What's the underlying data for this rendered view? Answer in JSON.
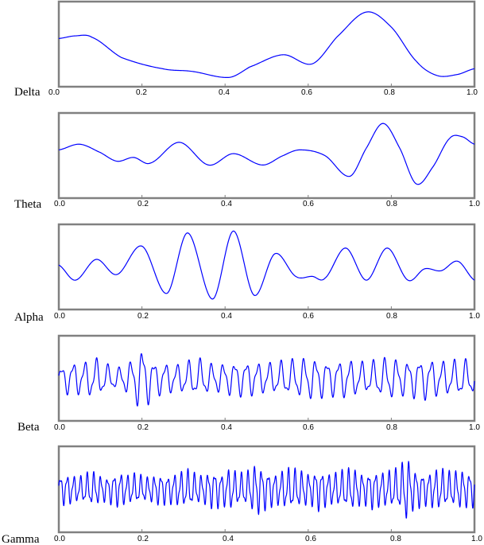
{
  "chart_data": {
    "type": "line",
    "x_ticks": [
      "0.0",
      "0.2",
      "0.4",
      "0.6",
      "0.8",
      "1.0"
    ],
    "x_tick_values": [
      0.0,
      0.2,
      0.4,
      0.6,
      0.8,
      1.0
    ],
    "xlim": [
      0.0,
      1.0
    ],
    "line_color": "#0000ff",
    "frame_color": "#808080",
    "grid": false,
    "panels": [
      {
        "label": "Delta",
        "ylim": [
          -1,
          1
        ],
        "keypoints": [
          [
            0.0,
            0.15
          ],
          [
            0.04,
            0.22
          ],
          [
            0.08,
            0.18
          ],
          [
            0.15,
            -0.35
          ],
          [
            0.25,
            -0.65
          ],
          [
            0.32,
            -0.72
          ],
          [
            0.41,
            -0.88
          ],
          [
            0.46,
            -0.6
          ],
          [
            0.54,
            -0.28
          ],
          [
            0.61,
            -0.52
          ],
          [
            0.67,
            0.2
          ],
          [
            0.74,
            0.85
          ],
          [
            0.8,
            0.45
          ],
          [
            0.86,
            -0.45
          ],
          [
            0.91,
            -0.83
          ],
          [
            0.96,
            -0.8
          ],
          [
            1.0,
            -0.65
          ]
        ]
      },
      {
        "label": "Theta",
        "ylim": [
          -1,
          1
        ],
        "keypoints": [
          [
            0.0,
            0.15
          ],
          [
            0.05,
            0.3
          ],
          [
            0.1,
            0.08
          ],
          [
            0.14,
            -0.15
          ],
          [
            0.18,
            -0.05
          ],
          [
            0.22,
            -0.2
          ],
          [
            0.29,
            0.35
          ],
          [
            0.36,
            -0.25
          ],
          [
            0.42,
            0.05
          ],
          [
            0.49,
            -0.25
          ],
          [
            0.54,
            0.0
          ],
          [
            0.58,
            0.15
          ],
          [
            0.64,
            0.0
          ],
          [
            0.7,
            -0.55
          ],
          [
            0.74,
            0.2
          ],
          [
            0.78,
            0.85
          ],
          [
            0.82,
            0.2
          ],
          [
            0.86,
            -0.75
          ],
          [
            0.9,
            -0.3
          ],
          [
            0.94,
            0.45
          ],
          [
            0.97,
            0.5
          ],
          [
            1.0,
            0.3
          ]
        ]
      },
      {
        "label": "Alpha",
        "ylim": [
          -1,
          1
        ],
        "keypoints": [
          [
            0.0,
            0.05
          ],
          [
            0.04,
            -0.35
          ],
          [
            0.09,
            0.2
          ],
          [
            0.14,
            -0.2
          ],
          [
            0.2,
            0.55
          ],
          [
            0.26,
            -0.7
          ],
          [
            0.31,
            0.9
          ],
          [
            0.37,
            -0.85
          ],
          [
            0.42,
            0.95
          ],
          [
            0.47,
            -0.75
          ],
          [
            0.52,
            0.35
          ],
          [
            0.57,
            -0.25
          ],
          [
            0.61,
            -0.25
          ],
          [
            0.64,
            -0.3
          ],
          [
            0.69,
            0.5
          ],
          [
            0.74,
            -0.35
          ],
          [
            0.79,
            0.5
          ],
          [
            0.84,
            -0.35
          ],
          [
            0.88,
            -0.05
          ],
          [
            0.92,
            -0.1
          ],
          [
            0.96,
            0.15
          ],
          [
            1.0,
            -0.35
          ]
        ]
      },
      {
        "label": "Beta",
        "ylim": [
          -1,
          1
        ],
        "freq": 36,
        "amplitudes": [
          0.3,
          0.5,
          0.45,
          0.6,
          0.4,
          0.3,
          0.5,
          0.95,
          0.5,
          0.45,
          0.4,
          0.5,
          0.55,
          0.4,
          0.45,
          0.5,
          0.5,
          0.45,
          0.45,
          0.5,
          0.55,
          0.6,
          0.55,
          0.5,
          0.55,
          0.5,
          0.45,
          0.55,
          0.6,
          0.5,
          0.55,
          0.6,
          0.5,
          0.5,
          0.55,
          0.45
        ]
      },
      {
        "label": "Gamma",
        "ylim": [
          -1,
          1
        ],
        "freq": 62,
        "amplitudes": [
          0.4,
          0.45,
          0.4,
          0.35,
          0.45,
          0.5,
          0.4,
          0.35,
          0.45,
          0.5,
          0.4,
          0.45,
          0.4,
          0.35,
          0.4,
          0.45,
          0.4,
          0.45,
          0.5,
          0.55,
          0.45,
          0.4,
          0.5,
          0.55,
          0.45,
          0.6,
          0.5,
          0.45,
          0.55,
          0.75,
          0.6,
          0.5,
          0.45,
          0.55,
          0.6,
          0.55,
          0.5,
          0.45,
          0.6,
          0.5,
          0.45,
          0.5,
          0.55,
          0.6,
          0.5,
          0.45,
          0.55,
          0.5,
          0.5,
          0.55,
          0.6,
          0.95,
          0.6,
          0.5,
          0.45,
          0.55,
          0.6,
          0.5,
          0.5,
          0.55,
          0.5,
          0.5
        ]
      }
    ]
  }
}
